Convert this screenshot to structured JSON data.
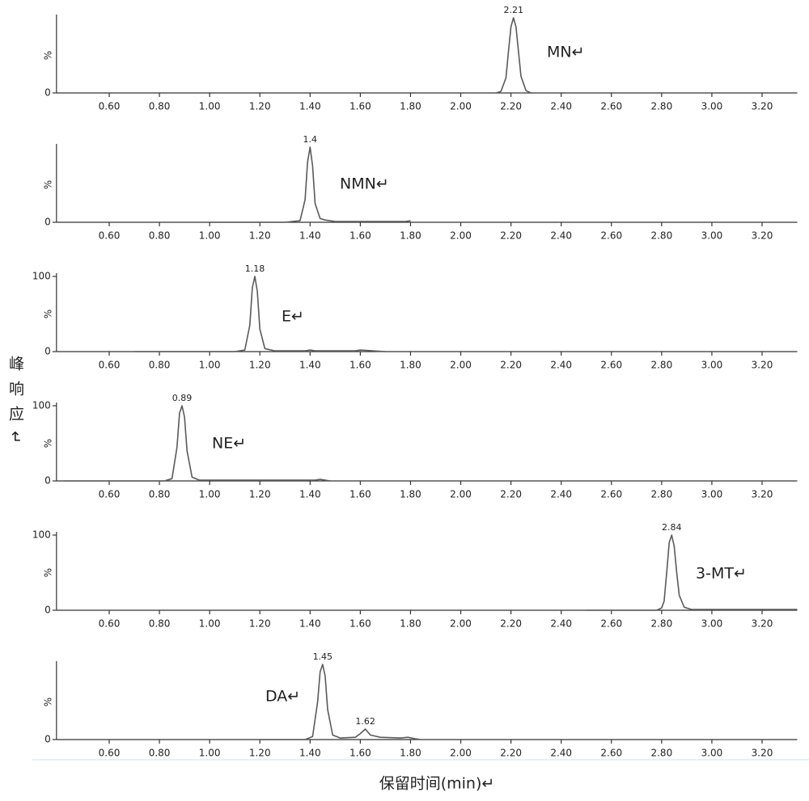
{
  "chart_data": [
    {
      "type": "line",
      "compound": "MN↵",
      "y_label": "%",
      "peak_labels": [
        2.21
      ],
      "color": "#5a5a5a",
      "x": [
        2.14,
        2.16,
        2.18,
        2.19,
        2.2,
        2.21,
        2.22,
        2.23,
        2.24,
        2.26,
        2.28
      ],
      "y": [
        0,
        2,
        20,
        55,
        88,
        100,
        88,
        55,
        22,
        3,
        0
      ],
      "xlim": [
        0.39,
        3.34
      ],
      "ylim": [
        0,
        100
      ],
      "yticks": [
        0
      ],
      "xticks": [
        {
          "value": 0.6,
          "label": "0.60"
        },
        {
          "value": 0.8,
          "label": "0.80"
        },
        {
          "value": 1.0,
          "label": "1.00"
        },
        {
          "value": 1.2,
          "label": "1.20"
        },
        {
          "value": 1.4,
          "label": "1.40"
        },
        {
          "value": 1.6,
          "label": "1.60"
        },
        {
          "value": 1.8,
          "label": "1.80"
        },
        {
          "value": 2.0,
          "label": "2.00"
        },
        {
          "value": 2.2,
          "label": "2.20"
        },
        {
          "value": 2.4,
          "label": "2.40"
        },
        {
          "value": 2.6,
          "label": "2.60"
        },
        {
          "value": 2.8,
          "label": "2.80"
        },
        {
          "value": 3.0,
          "label": "3.00"
        },
        {
          "value": 3.2,
          "label": "3.20"
        }
      ]
    },
    {
      "type": "line",
      "compound": "NMN↵",
      "y_label": "%",
      "peak_labels": [
        1.4
      ],
      "color": "#5a5a5a",
      "x": [
        1.0,
        1.3,
        1.36,
        1.38,
        1.39,
        1.4,
        1.41,
        1.42,
        1.44,
        1.46,
        1.5,
        1.78,
        1.8
      ],
      "y": [
        0,
        0,
        2,
        30,
        80,
        100,
        75,
        25,
        5,
        3,
        1,
        1,
        2
      ],
      "xlim": [
        0.39,
        3.34
      ],
      "ylim": [
        0,
        100
      ],
      "yticks": [
        0
      ],
      "xticks": [
        {
          "value": 0.6,
          "label": "0.60"
        },
        {
          "value": 0.8,
          "label": "0.80"
        },
        {
          "value": 1.0,
          "label": "1.00"
        },
        {
          "value": 1.2,
          "label": "1.20"
        },
        {
          "value": 1.4,
          "label": "1.40"
        },
        {
          "value": 1.6,
          "label": "1.60"
        },
        {
          "value": 1.8,
          "label": "1.80"
        },
        {
          "value": 2.0,
          "label": "2.00"
        },
        {
          "value": 2.2,
          "label": "2.20"
        },
        {
          "value": 2.4,
          "label": "2.40"
        },
        {
          "value": 2.6,
          "label": "2.60"
        },
        {
          "value": 2.8,
          "label": "2.80"
        },
        {
          "value": 3.0,
          "label": "3.00"
        },
        {
          "value": 3.2,
          "label": "3.20"
        }
      ]
    },
    {
      "type": "line",
      "compound": "E↵",
      "y_label": "%",
      "peak_labels": [
        1.18
      ],
      "color": "#5a5a5a",
      "x": [
        0.7,
        1.1,
        1.14,
        1.16,
        1.17,
        1.18,
        1.19,
        1.2,
        1.22,
        1.26,
        1.38,
        1.4,
        1.42,
        1.58,
        1.6,
        1.7
      ],
      "y": [
        0,
        0,
        2,
        35,
        85,
        100,
        80,
        30,
        4,
        1,
        1,
        2,
        1,
        1,
        2,
        0
      ],
      "xlim": [
        0.39,
        3.34
      ],
      "ylim": [
        0,
        100
      ],
      "yticks": [
        0,
        100
      ],
      "xticks": [
        {
          "value": 0.6,
          "label": "0.60"
        },
        {
          "value": 0.8,
          "label": "0.80"
        },
        {
          "value": 1.0,
          "label": "1.00"
        },
        {
          "value": 1.2,
          "label": "1.20"
        },
        {
          "value": 1.4,
          "label": "1.40"
        },
        {
          "value": 1.6,
          "label": "1.60"
        },
        {
          "value": 1.8,
          "label": "1.80"
        },
        {
          "value": 2.0,
          "label": "2.00"
        },
        {
          "value": 2.2,
          "label": "2.20"
        },
        {
          "value": 2.4,
          "label": "2.40"
        },
        {
          "value": 2.6,
          "label": "2.60"
        },
        {
          "value": 2.8,
          "label": "2.80"
        },
        {
          "value": 3.0,
          "label": "3.00"
        },
        {
          "value": 3.2,
          "label": "3.20"
        }
      ]
    },
    {
      "type": "line",
      "compound": "NE↵",
      "y_label": "%",
      "peak_labels": [
        0.89
      ],
      "color": "#5a5a5a",
      "x": [
        0.42,
        0.82,
        0.85,
        0.87,
        0.88,
        0.89,
        0.9,
        0.91,
        0.93,
        0.96,
        1.42,
        1.44,
        1.46,
        1.48
      ],
      "y": [
        0,
        0,
        3,
        45,
        90,
        100,
        85,
        40,
        5,
        1,
        1,
        2,
        1,
        0
      ],
      "xlim": [
        0.39,
        3.34
      ],
      "ylim": [
        0,
        100
      ],
      "yticks": [
        0,
        100
      ],
      "xticks": [
        {
          "value": 0.6,
          "label": "0.60"
        },
        {
          "value": 0.8,
          "label": "0.80"
        },
        {
          "value": 1.0,
          "label": "1.00"
        },
        {
          "value": 1.2,
          "label": "1.20"
        },
        {
          "value": 1.4,
          "label": "1.40"
        },
        {
          "value": 1.6,
          "label": "1.60"
        },
        {
          "value": 1.8,
          "label": "1.80"
        },
        {
          "value": 2.0,
          "label": "2.00"
        },
        {
          "value": 2.2,
          "label": "2.20"
        },
        {
          "value": 2.4,
          "label": "2.40"
        },
        {
          "value": 2.6,
          "label": "2.60"
        },
        {
          "value": 2.8,
          "label": "2.80"
        },
        {
          "value": 3.0,
          "label": "3.00"
        },
        {
          "value": 3.2,
          "label": "3.20"
        }
      ]
    },
    {
      "type": "line",
      "compound": "3-MT↵",
      "y_label": "%",
      "peak_labels": [
        2.84
      ],
      "color": "#5a5a5a",
      "x": [
        2.5,
        2.78,
        2.8,
        2.81,
        2.82,
        2.83,
        2.84,
        2.85,
        2.86,
        2.87,
        2.89,
        2.92,
        3.34
      ],
      "y": [
        0,
        0,
        3,
        12,
        50,
        90,
        100,
        85,
        50,
        20,
        4,
        1,
        1
      ],
      "xlim": [
        0.39,
        3.34
      ],
      "ylim": [
        0,
        100
      ],
      "yticks": [
        0,
        100
      ],
      "xticks": [
        {
          "value": 0.6,
          "label": "0.60"
        },
        {
          "value": 0.8,
          "label": "0.80"
        },
        {
          "value": 1.0,
          "label": "1.00"
        },
        {
          "value": 1.2,
          "label": "1.20"
        },
        {
          "value": 1.4,
          "label": "1.40"
        },
        {
          "value": 1.6,
          "label": "1.60"
        },
        {
          "value": 1.8,
          "label": "1.80"
        },
        {
          "value": 2.0,
          "label": "2.00"
        },
        {
          "value": 2.2,
          "label": "2.20"
        },
        {
          "value": 2.4,
          "label": "2.40"
        },
        {
          "value": 2.6,
          "label": "2.60"
        },
        {
          "value": 2.8,
          "label": "2.80"
        },
        {
          "value": 3.0,
          "label": "3.00"
        },
        {
          "value": 3.2,
          "label": "3.20"
        }
      ]
    },
    {
      "type": "line",
      "compound": "DA↵",
      "y_label": "%",
      "peak_labels": [
        1.45,
        1.62
      ],
      "color": "#5a5a5a",
      "x": [
        1.2,
        1.38,
        1.41,
        1.43,
        1.44,
        1.45,
        1.46,
        1.47,
        1.49,
        1.52,
        1.58,
        1.6,
        1.62,
        1.64,
        1.68,
        1.76,
        1.79,
        1.82,
        1.84
      ],
      "y": [
        0,
        0,
        4,
        50,
        90,
        100,
        85,
        40,
        6,
        2,
        3,
        8,
        14,
        6,
        3,
        2,
        3,
        1,
        0
      ],
      "xlim": [
        0.39,
        3.34
      ],
      "ylim": [
        0,
        100
      ],
      "yticks": [
        0
      ],
      "xticks": [
        {
          "value": 0.6,
          "label": "0.60"
        },
        {
          "value": 0.8,
          "label": "0.80"
        },
        {
          "value": 1.0,
          "label": "1.00"
        },
        {
          "value": 1.2,
          "label": "1.20"
        },
        {
          "value": 1.4,
          "label": "1.40"
        },
        {
          "value": 1.6,
          "label": "1.60"
        },
        {
          "value": 1.8,
          "label": "1.80"
        },
        {
          "value": 2.0,
          "label": "2.00"
        },
        {
          "value": 2.2,
          "label": "2.20"
        },
        {
          "value": 2.4,
          "label": "2.40"
        },
        {
          "value": 2.6,
          "label": "2.60"
        },
        {
          "value": 2.8,
          "label": "2.80"
        },
        {
          "value": 3.0,
          "label": "3.00"
        },
        {
          "value": 3.2,
          "label": "3.20"
        }
      ]
    }
  ],
  "shared": {
    "y_axis_label": "峰响应↵",
    "x_axis_label": "保留时间(min)↵"
  }
}
